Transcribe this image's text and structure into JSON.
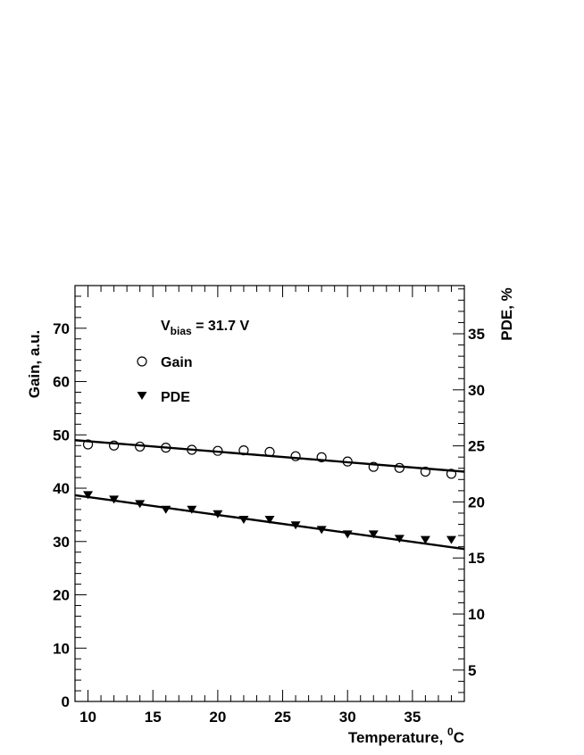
{
  "chart_data": {
    "type": "scatter",
    "xlabel": "Temperature, ",
    "xlabel_sup": "0",
    "xlabel_unit": "C",
    "ylabel_left": "Gain, a.u.",
    "ylabel_right": "PDE, %",
    "xlim": [
      9,
      39
    ],
    "ylim_left": [
      0,
      78
    ],
    "ylim_right": [
      2.2,
      39.3
    ],
    "x_ticks": [
      10,
      15,
      20,
      25,
      30,
      35
    ],
    "y_left_ticks": [
      0,
      10,
      20,
      30,
      40,
      50,
      60,
      70
    ],
    "y_right_ticks": [
      5,
      10,
      15,
      20,
      25,
      30,
      35
    ],
    "annotation": {
      "prefix": "V",
      "subscript": "bias",
      "suffix": " = 31.7 V"
    },
    "legend": {
      "placement": "top-left"
    },
    "series": [
      {
        "name": "Gain",
        "axis": "left",
        "marker": "open-circle",
        "x": [
          10,
          12,
          14,
          16,
          18,
          20,
          22,
          24,
          26,
          28,
          30,
          32,
          34,
          36,
          38
        ],
        "y": [
          48.2,
          48.0,
          47.8,
          47.6,
          47.2,
          47.0,
          47.1,
          46.8,
          46.0,
          45.8,
          45.0,
          44.0,
          43.8,
          43.1,
          42.7
        ],
        "fit": {
          "x": [
            9,
            39
          ],
          "y": [
            49.0,
            43.1
          ]
        }
      },
      {
        "name": "PDE",
        "axis": "right",
        "marker": "filled-triangle-down",
        "x": [
          10,
          12,
          14,
          16,
          18,
          20,
          22,
          24,
          26,
          28,
          30,
          32,
          34,
          36,
          38
        ],
        "y": [
          20.6,
          20.2,
          19.8,
          19.3,
          19.3,
          18.9,
          18.4,
          18.4,
          17.9,
          17.5,
          17.1,
          17.1,
          16.7,
          16.6,
          16.6
        ],
        "fit": {
          "x": [
            9,
            39
          ],
          "y": [
            20.6,
            15.8
          ]
        }
      }
    ]
  }
}
